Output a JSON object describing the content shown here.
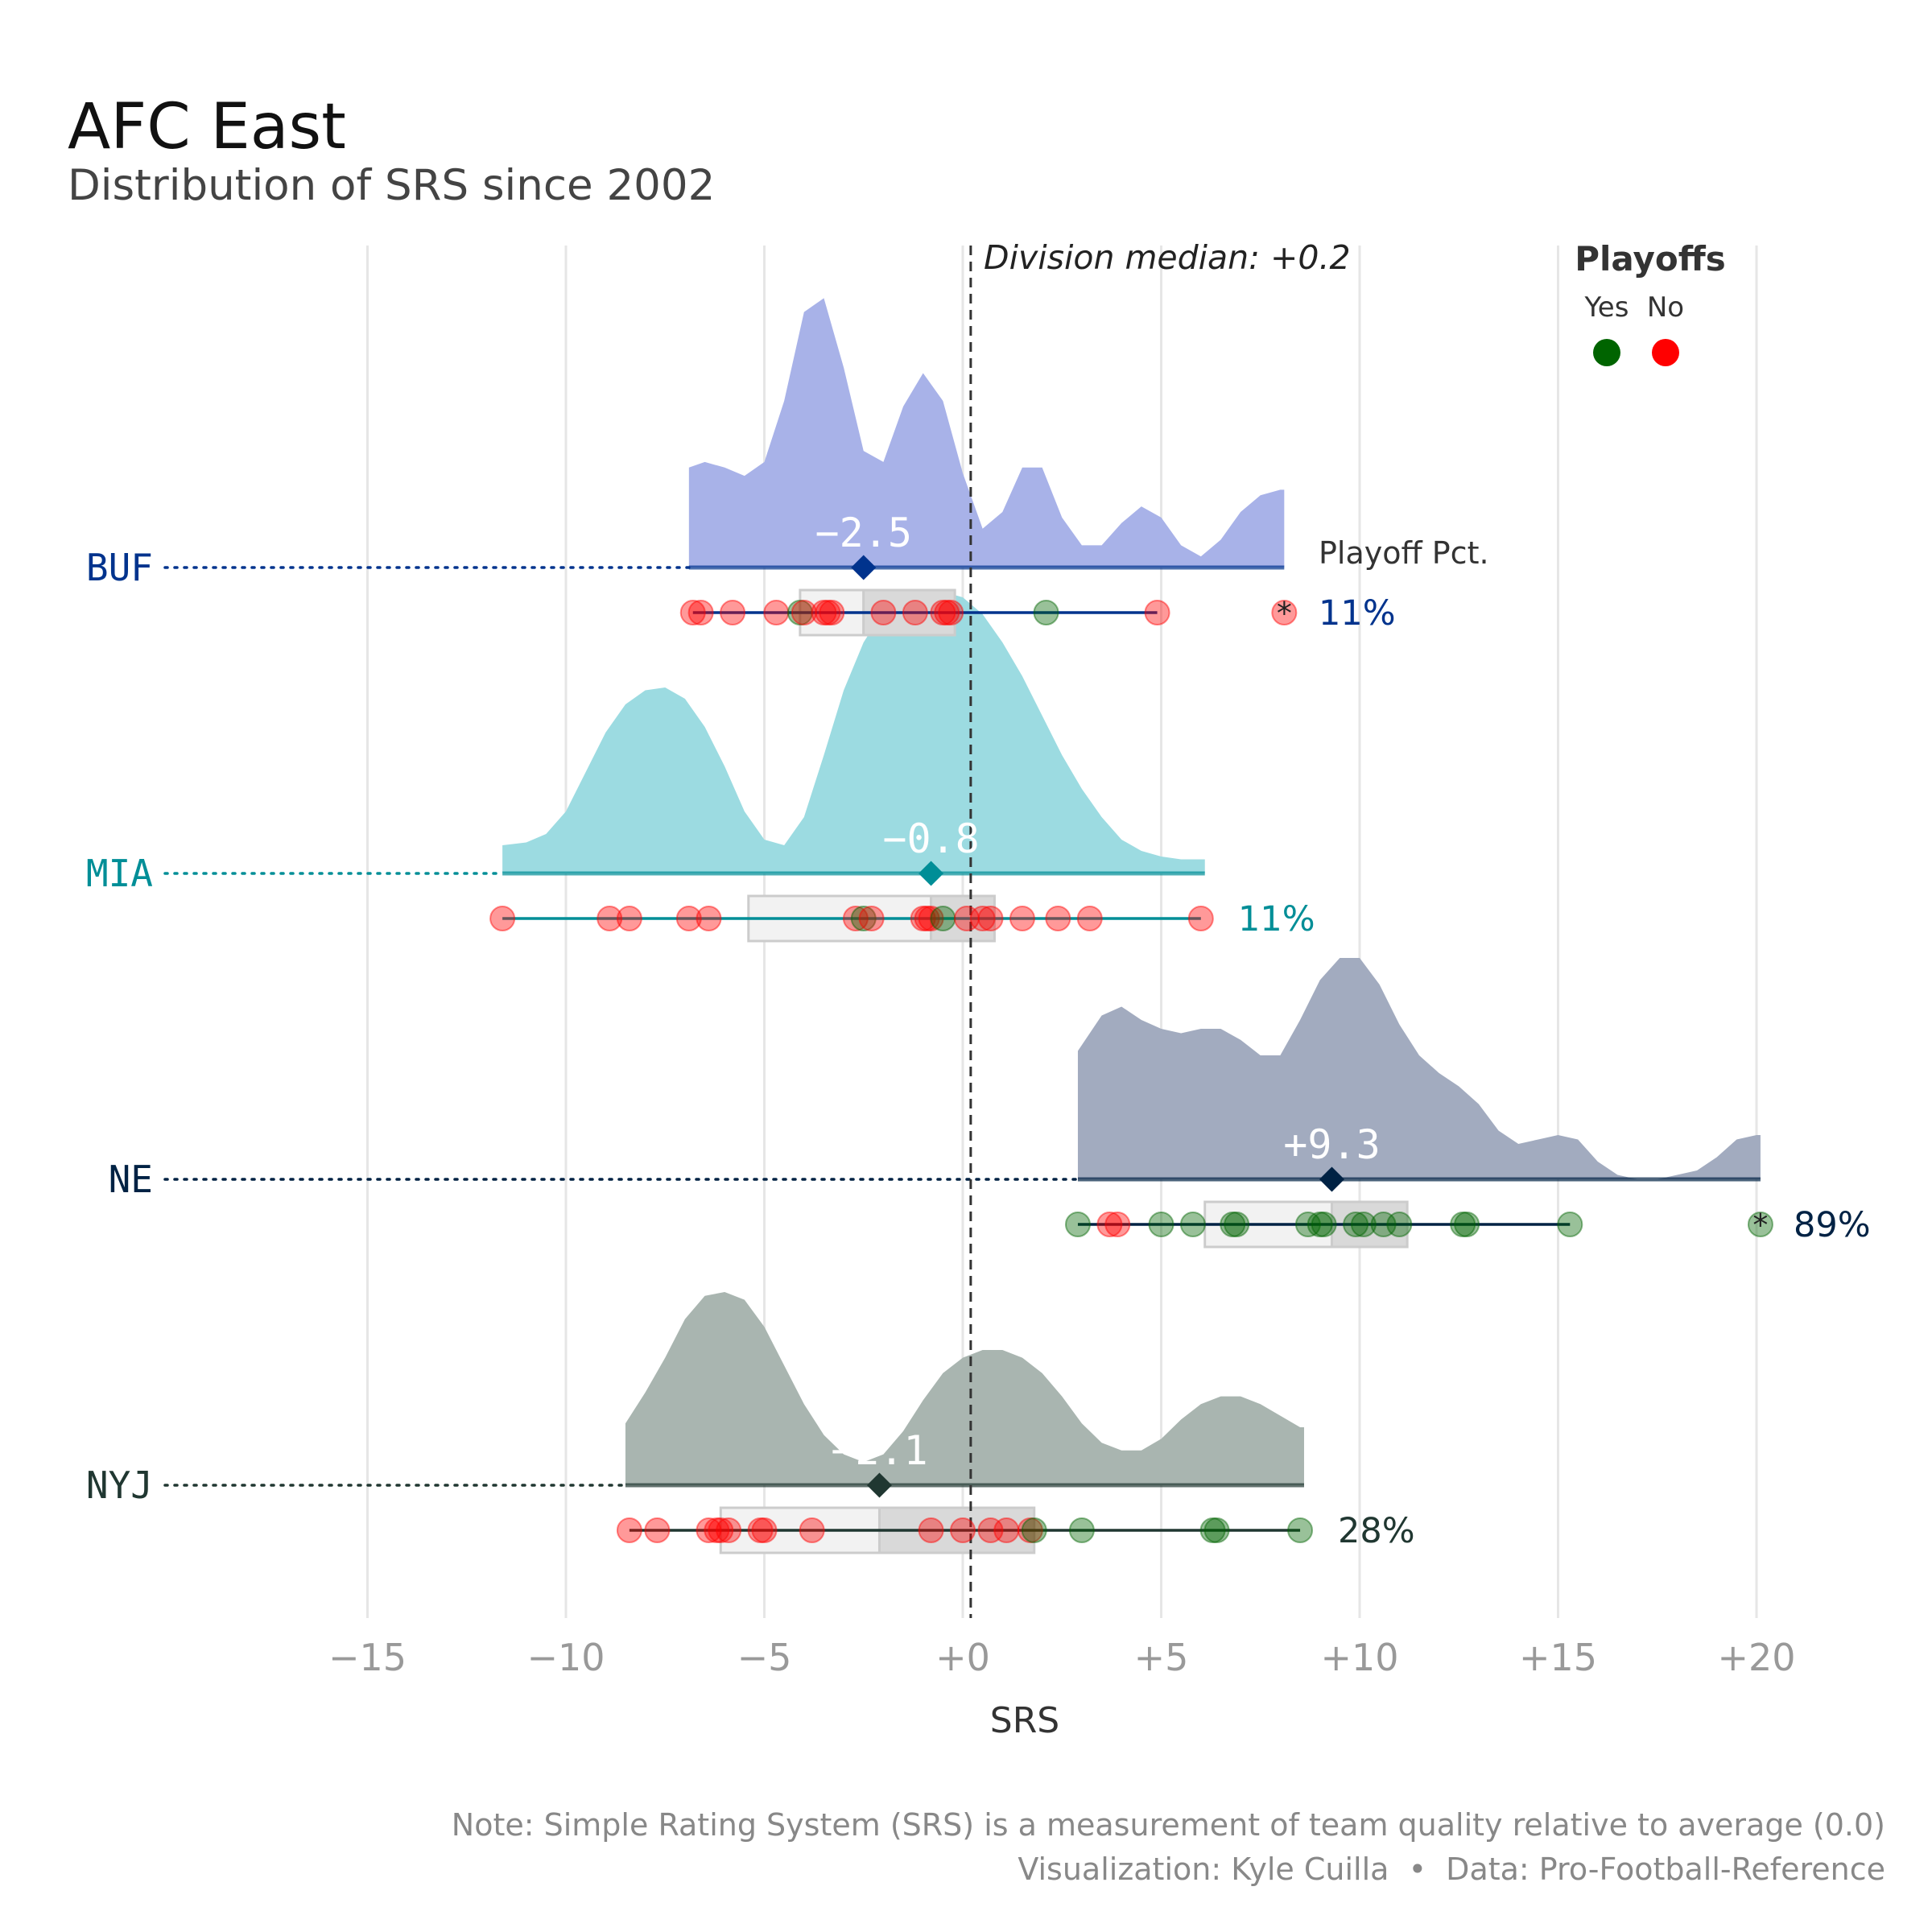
{
  "title": "AFC East",
  "subtitle": "Distribution of SRS since 2002",
  "median_label": "Division median: +0.2",
  "legend": {
    "title": "Playoffs",
    "items": [
      {
        "label": "Yes",
        "color": "#006400"
      },
      {
        "label": "No",
        "color": "#ff0000"
      }
    ]
  },
  "playoff_pct_header": "Playoff Pct.",
  "note": "Note: Simple Rating System (SRS) is a measurement of team quality relative to average (0.0)",
  "credit": "Visualization: Kyle Cuilla  •  Data: Pro-Football-Reference",
  "chart_data": {
    "type": "raincloud",
    "xlabel": "SRS",
    "xlim": [
      -16.5,
      21
    ],
    "x_ticks": [
      -15,
      -10,
      -5,
      0,
      5,
      10,
      15,
      20
    ],
    "x_tick_labels": [
      "−15",
      "−10",
      "−5",
      "+0",
      "+5",
      "+10",
      "+15",
      "+20"
    ],
    "division_median": 0.2,
    "grid": "vertical-major",
    "legend_position": "top-right",
    "teams": [
      {
        "name": "BUF",
        "color": "#00338d",
        "fill": "#a8b2e8",
        "median_label": "−2.5",
        "median": -2.5,
        "range": [
          -6.9,
          8.1
        ],
        "box": {
          "q1": -4.1,
          "q3": -0.2
        },
        "playoff_pct": "11%",
        "density_x": [
          -6.9,
          -6.5,
          -6,
          -5.5,
          -5,
          -4.5,
          -4,
          -3.5,
          -3,
          -2.5,
          -2,
          -1.5,
          -1,
          -0.5,
          0,
          0.5,
          1,
          1.5,
          2,
          2.5,
          3,
          3.5,
          4,
          4.5,
          5,
          5.5,
          6,
          6.5,
          7,
          7.5,
          8,
          8.1
        ],
        "density_y": [
          0.36,
          0.38,
          0.36,
          0.33,
          0.38,
          0.6,
          0.92,
          0.97,
          0.72,
          0.42,
          0.38,
          0.58,
          0.7,
          0.6,
          0.34,
          0.14,
          0.2,
          0.36,
          0.36,
          0.18,
          0.08,
          0.08,
          0.16,
          0.22,
          0.18,
          0.08,
          0.04,
          0.1,
          0.2,
          0.26,
          0.28,
          0.28
        ],
        "points": [
          {
            "x": -6.8,
            "playoff": false
          },
          {
            "x": -6.6,
            "playoff": false
          },
          {
            "x": -5.8,
            "playoff": false
          },
          {
            "x": -4.7,
            "playoff": false
          },
          {
            "x": -4.1,
            "playoff": true
          },
          {
            "x": -4.0,
            "playoff": false
          },
          {
            "x": -3.5,
            "playoff": false
          },
          {
            "x": -3.4,
            "playoff": false
          },
          {
            "x": -3.3,
            "playoff": false
          },
          {
            "x": -2.0,
            "playoff": false
          },
          {
            "x": -1.2,
            "playoff": false
          },
          {
            "x": -0.5,
            "playoff": false
          },
          {
            "x": -0.4,
            "playoff": false
          },
          {
            "x": -0.3,
            "playoff": false
          },
          {
            "x": 2.1,
            "playoff": true
          },
          {
            "x": 4.9,
            "playoff": false
          }
        ],
        "outliers": [
          {
            "x": 8.1,
            "playoff": false
          }
        ]
      },
      {
        "name": "MIA",
        "color": "#008e97",
        "fill": "#9cdbe1",
        "median_label": "−0.8",
        "median": -0.8,
        "range": [
          -11.6,
          6.1
        ],
        "box": {
          "q1": -5.4,
          "q3": 0.8
        },
        "playoff_pct": "11%",
        "density_x": [
          -11.6,
          -11,
          -10.5,
          -10,
          -9.5,
          -9,
          -8.5,
          -8,
          -7.5,
          -7,
          -6.5,
          -6,
          -5.5,
          -5,
          -4.5,
          -4,
          -3.5,
          -3,
          -2.5,
          -2,
          -1.5,
          -1,
          -0.5,
          0,
          0.5,
          1,
          1.5,
          2,
          2.5,
          3,
          3.5,
          4,
          4.5,
          5,
          5.5,
          6,
          6.1
        ],
        "density_y": [
          0.1,
          0.11,
          0.14,
          0.22,
          0.36,
          0.5,
          0.6,
          0.65,
          0.66,
          0.62,
          0.52,
          0.38,
          0.22,
          0.12,
          0.1,
          0.2,
          0.42,
          0.65,
          0.82,
          0.93,
          0.98,
          1.0,
          1.0,
          0.98,
          0.92,
          0.82,
          0.7,
          0.56,
          0.42,
          0.3,
          0.2,
          0.12,
          0.08,
          0.06,
          0.05,
          0.05,
          0.05
        ],
        "points": [
          {
            "x": -11.6,
            "playoff": false
          },
          {
            "x": -8.9,
            "playoff": false
          },
          {
            "x": -8.4,
            "playoff": false
          },
          {
            "x": -6.9,
            "playoff": false
          },
          {
            "x": -6.4,
            "playoff": false
          },
          {
            "x": -2.7,
            "playoff": false
          },
          {
            "x": -2.5,
            "playoff": true
          },
          {
            "x": -2.3,
            "playoff": false
          },
          {
            "x": -1.0,
            "playoff": false
          },
          {
            "x": -0.9,
            "playoff": false
          },
          {
            "x": -0.8,
            "playoff": false
          },
          {
            "x": -0.5,
            "playoff": true
          },
          {
            "x": 0.1,
            "playoff": false
          },
          {
            "x": 0.5,
            "playoff": false
          },
          {
            "x": 0.7,
            "playoff": false
          },
          {
            "x": 1.5,
            "playoff": false
          },
          {
            "x": 2.4,
            "playoff": false
          },
          {
            "x": 3.2,
            "playoff": false
          },
          {
            "x": 6.0,
            "playoff": false
          }
        ],
        "outliers": []
      },
      {
        "name": "NE",
        "color": "#002244",
        "fill": "#a2abbf",
        "median_label": "+9.3",
        "median": 9.3,
        "range": [
          2.9,
          20.1
        ],
        "box": {
          "q1": 6.1,
          "q3": 11.2
        },
        "playoff_pct": "89%",
        "density_x": [
          2.9,
          3.5,
          4,
          4.5,
          5,
          5.5,
          6,
          6.5,
          7,
          7.5,
          8,
          8.5,
          9,
          9.5,
          10,
          10.5,
          11,
          11.5,
          12,
          12.5,
          13,
          13.5,
          14,
          14.5,
          15,
          15.5,
          16,
          16.5,
          17,
          17.5,
          18,
          18.5,
          19,
          19.5,
          20,
          20.1
        ],
        "density_y": [
          0.58,
          0.74,
          0.78,
          0.72,
          0.68,
          0.66,
          0.68,
          0.68,
          0.63,
          0.56,
          0.56,
          0.72,
          0.9,
          1.0,
          1.0,
          0.88,
          0.7,
          0.56,
          0.48,
          0.42,
          0.34,
          0.22,
          0.16,
          0.18,
          0.2,
          0.18,
          0.08,
          0.02,
          0.0,
          0.0,
          0.02,
          0.04,
          0.1,
          0.18,
          0.2,
          0.2
        ],
        "points": [
          {
            "x": 2.9,
            "playoff": true
          },
          {
            "x": 3.7,
            "playoff": false
          },
          {
            "x": 3.9,
            "playoff": false
          },
          {
            "x": 5.0,
            "playoff": true
          },
          {
            "x": 5.8,
            "playoff": true
          },
          {
            "x": 6.8,
            "playoff": true
          },
          {
            "x": 6.9,
            "playoff": true
          },
          {
            "x": 8.7,
            "playoff": true
          },
          {
            "x": 9.0,
            "playoff": true
          },
          {
            "x": 9.1,
            "playoff": true
          },
          {
            "x": 9.9,
            "playoff": true
          },
          {
            "x": 10.1,
            "playoff": true
          },
          {
            "x": 10.6,
            "playoff": true
          },
          {
            "x": 11.0,
            "playoff": true
          },
          {
            "x": 12.6,
            "playoff": true
          },
          {
            "x": 12.7,
            "playoff": true
          },
          {
            "x": 15.3,
            "playoff": true
          }
        ],
        "outliers": [
          {
            "x": 20.1,
            "playoff": true
          }
        ]
      },
      {
        "name": "NYJ",
        "color": "#203731",
        "fill": "#a9b5b0",
        "median_label": "−2.1",
        "median": -2.1,
        "range": [
          -8.5,
          8.6
        ],
        "box": {
          "q1": -6.1,
          "q3": 1.8
        },
        "playoff_pct": "28%",
        "density_x": [
          -8.5,
          -8,
          -7.5,
          -7,
          -6.5,
          -6,
          -5.5,
          -5,
          -4.5,
          -4,
          -3.5,
          -3,
          -2.5,
          -2,
          -1.5,
          -1,
          -0.5,
          0,
          0.5,
          1,
          1.5,
          2,
          2.5,
          3,
          3.5,
          4,
          4.5,
          5,
          5.5,
          6,
          6.5,
          7,
          7.5,
          8,
          8.5,
          8.6
        ],
        "density_y": [
          0.32,
          0.48,
          0.66,
          0.86,
          0.98,
          1.0,
          0.96,
          0.82,
          0.62,
          0.42,
          0.26,
          0.16,
          0.12,
          0.16,
          0.28,
          0.44,
          0.58,
          0.66,
          0.7,
          0.7,
          0.66,
          0.58,
          0.46,
          0.32,
          0.22,
          0.18,
          0.18,
          0.24,
          0.34,
          0.42,
          0.46,
          0.46,
          0.42,
          0.36,
          0.3,
          0.3
        ],
        "points": [
          {
            "x": -8.4,
            "playoff": false
          },
          {
            "x": -7.7,
            "playoff": false
          },
          {
            "x": -6.4,
            "playoff": false
          },
          {
            "x": -6.2,
            "playoff": false
          },
          {
            "x": -6.1,
            "playoff": false
          },
          {
            "x": -5.9,
            "playoff": false
          },
          {
            "x": -5.1,
            "playoff": false
          },
          {
            "x": -5.0,
            "playoff": false
          },
          {
            "x": -3.8,
            "playoff": false
          },
          {
            "x": -0.8,
            "playoff": false
          },
          {
            "x": 0.0,
            "playoff": false
          },
          {
            "x": 0.7,
            "playoff": false
          },
          {
            "x": 1.1,
            "playoff": false
          },
          {
            "x": 1.7,
            "playoff": false
          },
          {
            "x": 1.8,
            "playoff": true
          },
          {
            "x": 3.0,
            "playoff": true
          },
          {
            "x": 6.3,
            "playoff": true
          },
          {
            "x": 6.4,
            "playoff": true
          },
          {
            "x": 8.5,
            "playoff": true
          }
        ],
        "outliers": []
      }
    ]
  }
}
